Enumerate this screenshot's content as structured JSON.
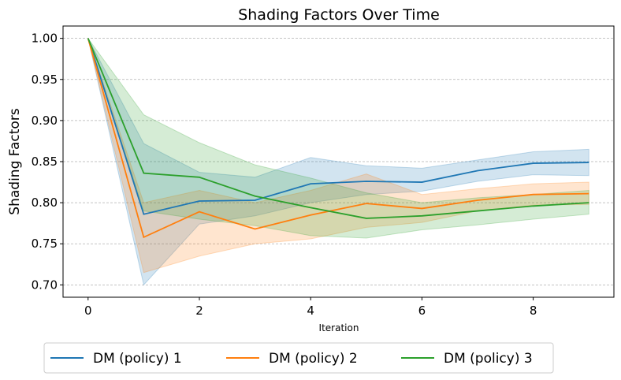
{
  "chart_data": {
    "type": "line",
    "title": "Shading Factors Over Time",
    "xlabel": "Iteration",
    "ylabel": "Shading Factors",
    "xlim": [
      -0.45,
      9.45
    ],
    "ylim": [
      0.685,
      1.015
    ],
    "xticks": [
      0,
      2,
      4,
      6,
      8
    ],
    "yticks": [
      0.7,
      0.75,
      0.8,
      0.85,
      0.9,
      0.95,
      1.0
    ],
    "grid": "y-dashed",
    "legend_position": "bottom",
    "x": [
      0,
      1,
      2,
      3,
      4,
      5,
      6,
      7,
      8,
      9
    ],
    "series": [
      {
        "name": "DM (policy) 1",
        "color": "#1f77b4",
        "values": [
          1.0,
          0.786,
          0.802,
          0.803,
          0.823,
          0.826,
          0.825,
          0.839,
          0.848,
          0.849
        ],
        "lower": [
          1.0,
          0.7,
          0.774,
          0.784,
          0.8,
          0.81,
          0.814,
          0.826,
          0.834,
          0.833
        ],
        "upper": [
          1.0,
          0.872,
          0.837,
          0.831,
          0.855,
          0.845,
          0.842,
          0.852,
          0.862,
          0.865
        ]
      },
      {
        "name": "DM (policy) 2",
        "color": "#ff7f0e",
        "values": [
          1.0,
          0.758,
          0.789,
          0.768,
          0.785,
          0.799,
          0.793,
          0.803,
          0.81,
          0.811
        ],
        "lower": [
          1.0,
          0.715,
          0.735,
          0.75,
          0.756,
          0.77,
          0.776,
          0.79,
          0.797,
          0.798
        ],
        "upper": [
          1.0,
          0.8,
          0.815,
          0.8,
          0.815,
          0.835,
          0.81,
          0.817,
          0.823,
          0.825
        ]
      },
      {
        "name": "DM (policy) 3",
        "color": "#2ca02c",
        "values": [
          1.0,
          0.836,
          0.831,
          0.808,
          0.794,
          0.781,
          0.784,
          0.79,
          0.796,
          0.8
        ],
        "lower": [
          1.0,
          0.79,
          0.78,
          0.772,
          0.76,
          0.757,
          0.767,
          0.773,
          0.78,
          0.786
        ],
        "upper": [
          1.0,
          0.907,
          0.873,
          0.846,
          0.83,
          0.812,
          0.8,
          0.806,
          0.81,
          0.815
        ]
      }
    ]
  }
}
